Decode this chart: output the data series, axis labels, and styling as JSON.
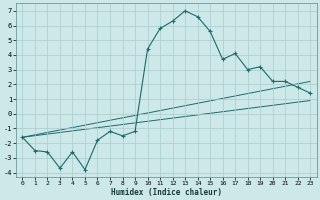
{
  "xlabel": "Humidex (Indice chaleur)",
  "bg_color": "#cce8e8",
  "grid_color": "#aacccc",
  "line_color": "#1a6b6b",
  "xlim": [
    -0.5,
    23.5
  ],
  "ylim": [
    -4.3,
    7.5
  ],
  "xtick_labels": [
    "0",
    "1",
    "2",
    "3",
    "4",
    "5",
    "6",
    "7",
    "8",
    "9",
    "10",
    "11",
    "12",
    "13",
    "14",
    "15",
    "16",
    "17",
    "18",
    "19",
    "20",
    "21",
    "22",
    "23"
  ],
  "ytick_labels": [
    "-4",
    "-3",
    "-2",
    "-1",
    "0",
    "1",
    "2",
    "3",
    "4",
    "5",
    "6",
    "7"
  ],
  "ytick_vals": [
    -4,
    -3,
    -2,
    -1,
    0,
    1,
    2,
    3,
    4,
    5,
    6,
    7
  ],
  "series1_x": [
    0,
    1,
    2,
    3,
    4,
    5,
    6,
    7,
    8,
    9,
    10,
    11,
    12,
    13,
    14,
    15,
    16,
    17,
    18,
    19,
    20,
    21,
    22,
    23
  ],
  "series1_y": [
    -1.6,
    -2.5,
    -2.6,
    -3.7,
    -2.6,
    -3.8,
    -1.8,
    -1.2,
    -1.5,
    -1.2,
    4.4,
    5.8,
    6.3,
    7.0,
    6.6,
    5.6,
    3.7,
    4.1,
    3.0,
    3.2,
    2.2,
    2.2,
    1.8,
    1.4
  ],
  "series2_x": [
    0,
    23
  ],
  "series2_y": [
    -1.6,
    2.2
  ],
  "series3_x": [
    0,
    23
  ],
  "series3_y": [
    -1.6,
    0.9
  ],
  "series4_x": [
    0,
    23
  ],
  "series4_y": [
    -1.6,
    1.0
  ]
}
